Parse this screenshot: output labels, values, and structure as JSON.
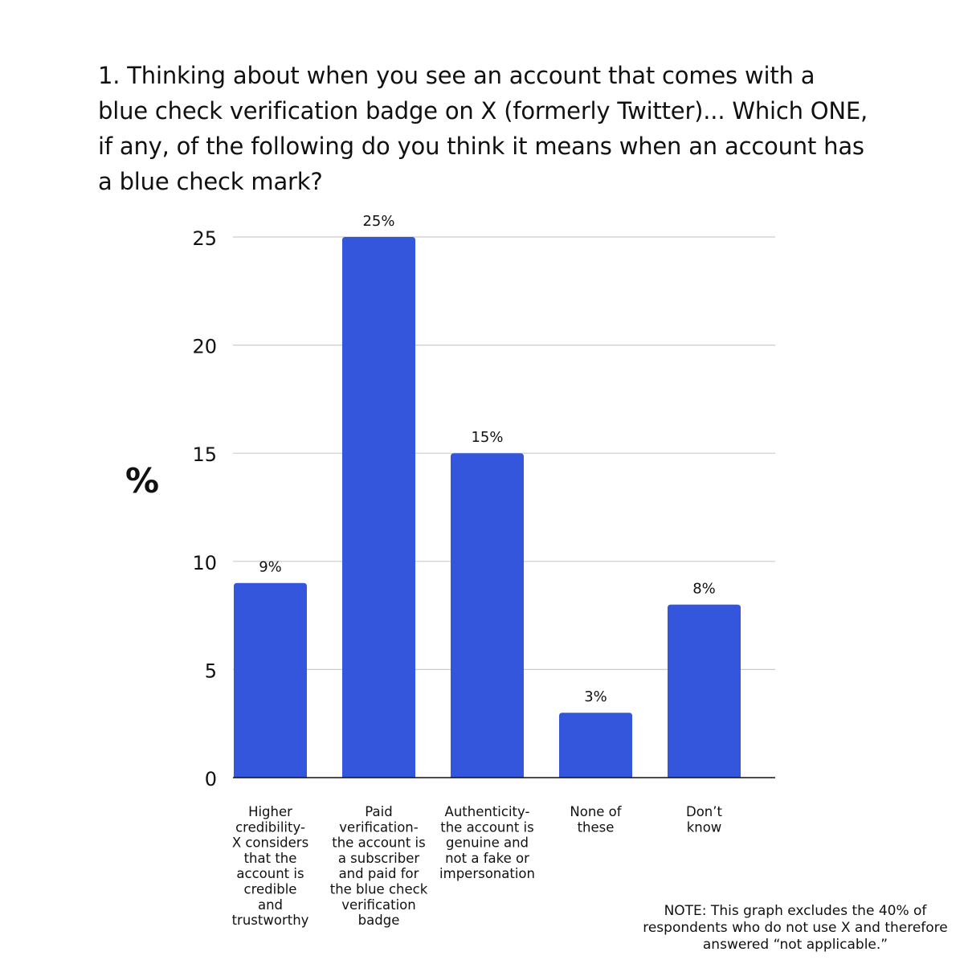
{
  "title": "1. Thinking about when you see an account that comes with a blue check verification badge on X (formerly Twitter)... Which ONE, if any, of the following do you think it means when an account has a blue check mark?",
  "note": "NOTE: This graph excludes the 40% of respondents who do not use X and therefore answered “not applicable.”",
  "colors": {
    "bar": "#3356DD",
    "grid": "#cccccc",
    "axis": "#111111"
  },
  "chart_data": {
    "type": "bar",
    "ylabel": "%",
    "ylim": [
      0,
      25
    ],
    "yticks": [
      0,
      5,
      10,
      15,
      20,
      25
    ],
    "grid": true,
    "categories": [
      [
        "Higher",
        "credibility-",
        "X considers",
        "that the",
        "account is",
        "credible",
        "and",
        "trustworthy"
      ],
      [
        "Paid",
        "verification-",
        "the account is",
        "a subscriber",
        "and paid for",
        "the blue check",
        "verification",
        "badge"
      ],
      [
        "Authenticity-",
        "the account is",
        "genuine and",
        "not a fake or",
        "impersonation"
      ],
      [
        "None of",
        "these"
      ],
      [
        "Don’t",
        "know"
      ]
    ],
    "values": [
      9,
      25,
      15,
      3,
      8
    ],
    "data_labels": [
      "9%",
      "25%",
      "15%",
      "3%",
      "8%"
    ]
  }
}
